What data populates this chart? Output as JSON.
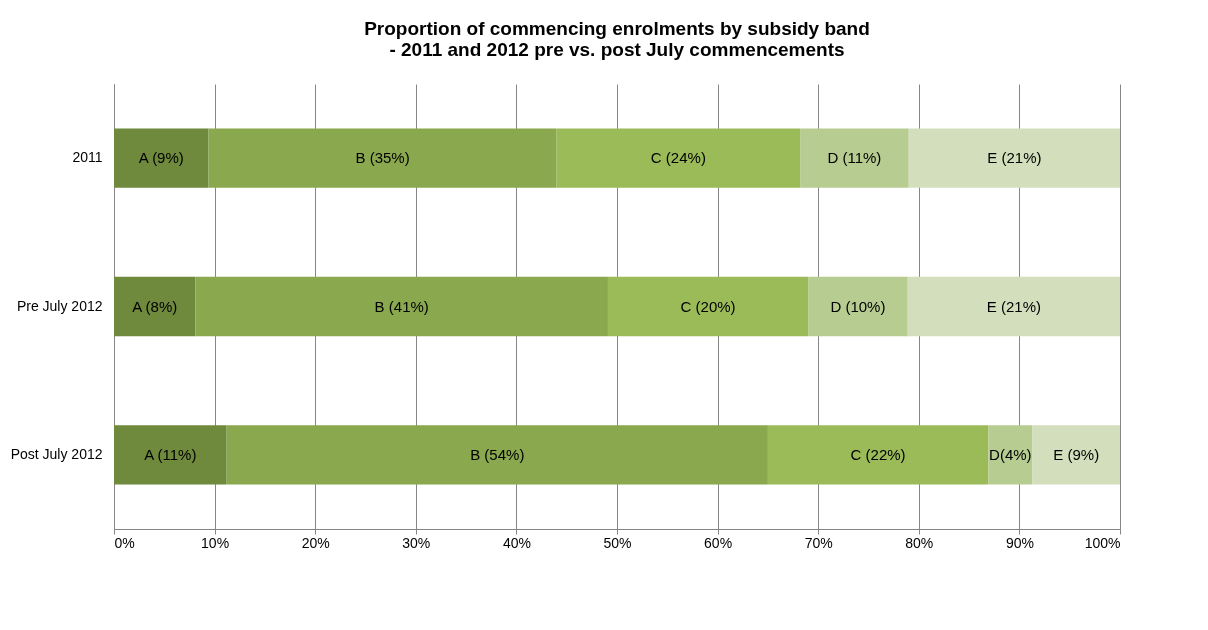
{
  "chart_data": {
    "type": "bar",
    "orientation": "horizontal",
    "stacked": true,
    "title": "Proportion of commencing enrolments by subsidy band\n- 2011 and 2012 pre vs. post July commencements",
    "categories": [
      "2011",
      "Pre July 2012",
      "Post July 2012"
    ],
    "series": [
      {
        "color": "#6f8a3c",
        "values": [
          9.4,
          8.1,
          11.2
        ],
        "value_labels": [
          "A (9%)",
          "A (8%)",
          "A (11%)"
        ]
      },
      {
        "color": "#8aa84e",
        "values": [
          34.6,
          41.0,
          53.8
        ],
        "value_labels": [
          "B (35%)",
          "B (41%)",
          "B (54%)"
        ]
      },
      {
        "color": "#9bbb59",
        "values": [
          24.2,
          19.9,
          21.9
        ],
        "value_labels": [
          "C (24%)",
          "C (20%)",
          "C (22%)"
        ]
      },
      {
        "color": "#b7cc90",
        "values": [
          10.8,
          9.9,
          4.4
        ],
        "value_labels": [
          "D (11%)",
          "D (10%)",
          "D(4%)"
        ]
      },
      {
        "color": "#d3dfbc",
        "values": [
          21.0,
          21.1,
          8.7
        ],
        "value_labels": [
          "E (21%)",
          "E (21%)",
          "E (9%)"
        ]
      }
    ],
    "xlim": [
      0,
      100
    ],
    "xticks": [
      {
        "value": 0,
        "label": "0%"
      },
      {
        "value": 10,
        "label": "10%"
      },
      {
        "value": 20,
        "label": "20%"
      },
      {
        "value": 30,
        "label": "30%"
      },
      {
        "value": 40,
        "label": "40%"
      },
      {
        "value": 50,
        "label": "50%"
      },
      {
        "value": 60,
        "label": "60%"
      },
      {
        "value": 70,
        "label": "70%"
      },
      {
        "value": 80,
        "label": "80%"
      },
      {
        "value": 90,
        "label": "90%"
      },
      {
        "value": 100,
        "label": "100%"
      }
    ],
    "grid": "x",
    "legend": false
  }
}
